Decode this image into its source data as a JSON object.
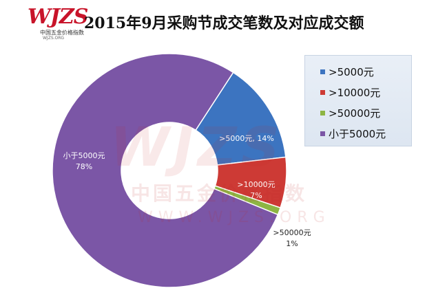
{
  "logo": {
    "mark": "WJZS",
    "cn": "中国五金价格指数",
    "url": "WJZS.ORG"
  },
  "watermark": {
    "mark": "WJZS",
    "cn": "中国五金价格指数",
    "url": "WWW.WJZS.ORG"
  },
  "chart_data": {
    "type": "pie",
    "style": "doughnut",
    "title": "2015年9月采购节成交笔数及对应成交额",
    "categories": [
      ">5000元",
      ">10000元",
      ">50000元",
      "小于5000元"
    ],
    "values": [
      14,
      7,
      1,
      78
    ],
    "value_unit": "%",
    "data_labels": [
      ">5000元, 14%",
      ">10000元\n7%",
      ">50000元\n1%",
      "小于5000元\n78%"
    ],
    "colors": [
      "#3c74c0",
      "#cd3a35",
      "#8db543",
      "#7b56a6"
    ],
    "start_angle_deg": 33,
    "legend_position": "right"
  }
}
